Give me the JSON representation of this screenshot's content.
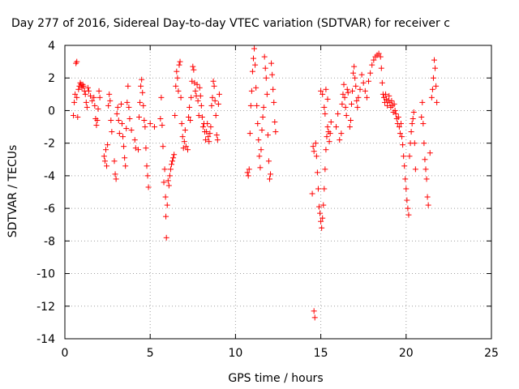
{
  "chart_data": {
    "type": "scatter",
    "title": "Day 277 of 2016, Sidereal Day-to-day VTEC variation (SDTVAR) for receiver c",
    "xlabel": "GPS time / hours",
    "ylabel": "SDTVAR / TECUs",
    "xlim": [
      0,
      25
    ],
    "ylim": [
      -14,
      4
    ],
    "xticks": [
      0,
      5,
      10,
      15,
      20,
      25
    ],
    "xtick_labels": [
      "0",
      "5",
      "10",
      "15",
      "20",
      "25"
    ],
    "yticks": [
      4,
      2,
      0,
      -2,
      -4,
      -6,
      -8,
      -10,
      -12,
      -14
    ],
    "ytick_labels": [
      "4",
      "2",
      "0",
      "-2",
      "-4",
      "-6",
      "-8",
      "-10",
      "-12",
      "-14"
    ],
    "grid": true,
    "marker": "+",
    "color": "#ff0000",
    "series": [
      {
        "name": "SDTVAR",
        "points": [
          [
            0.5,
            -0.3
          ],
          [
            0.55,
            0.5
          ],
          [
            0.6,
            1.0
          ],
          [
            0.65,
            2.9
          ],
          [
            0.7,
            3.0
          ],
          [
            0.7,
            0.8
          ],
          [
            0.75,
            -0.4
          ],
          [
            0.8,
            1.3
          ],
          [
            0.85,
            1.5
          ],
          [
            0.9,
            1.7
          ],
          [
            0.95,
            1.6
          ],
          [
            1.0,
            1.4
          ],
          [
            1.05,
            1.6
          ],
          [
            1.1,
            1.5
          ],
          [
            1.15,
            1.2
          ],
          [
            1.2,
            1.0
          ],
          [
            1.25,
            0.5
          ],
          [
            1.3,
            0.2
          ],
          [
            1.35,
            1.4
          ],
          [
            1.4,
            1.2
          ],
          [
            1.5,
            0.9
          ],
          [
            1.6,
            0.6
          ],
          [
            1.7,
            0.8
          ],
          [
            1.75,
            0.3
          ],
          [
            1.8,
            -0.5
          ],
          [
            1.85,
            -0.9
          ],
          [
            1.9,
            -0.6
          ],
          [
            1.95,
            0.1
          ],
          [
            2.0,
            1.2
          ],
          [
            2.05,
            0.8
          ],
          [
            2.3,
            -2.8
          ],
          [
            2.35,
            -3.1
          ],
          [
            2.4,
            -2.4
          ],
          [
            2.45,
            -3.4
          ],
          [
            2.5,
            -2.1
          ],
          [
            2.55,
            0.3
          ],
          [
            2.6,
            1.0
          ],
          [
            2.65,
            0.6
          ],
          [
            2.7,
            -0.6
          ],
          [
            2.75,
            -1.3
          ],
          [
            2.9,
            -3.1
          ],
          [
            2.95,
            -3.9
          ],
          [
            3.0,
            -4.2
          ],
          [
            3.05,
            -0.2
          ],
          [
            3.1,
            0.2
          ],
          [
            3.15,
            -0.6
          ],
          [
            3.2,
            -1.4
          ],
          [
            3.3,
            0.4
          ],
          [
            3.35,
            -0.8
          ],
          [
            3.4,
            -1.6
          ],
          [
            3.45,
            -2.2
          ],
          [
            3.5,
            -2.9
          ],
          [
            3.55,
            -3.4
          ],
          [
            3.6,
            -1.1
          ],
          [
            3.65,
            0.5
          ],
          [
            3.7,
            1.5
          ],
          [
            3.75,
            0.2
          ],
          [
            3.8,
            -0.5
          ],
          [
            3.9,
            -1.2
          ],
          [
            4.1,
            -1.8
          ],
          [
            4.15,
            -2.3
          ],
          [
            4.3,
            -2.4
          ],
          [
            4.35,
            -0.4
          ],
          [
            4.4,
            0.5
          ],
          [
            4.45,
            1.5
          ],
          [
            4.5,
            1.9
          ],
          [
            4.55,
            1.1
          ],
          [
            4.6,
            0.3
          ],
          [
            4.65,
            -0.6
          ],
          [
            4.7,
            -1.0
          ],
          [
            4.75,
            -2.3
          ],
          [
            4.8,
            -3.4
          ],
          [
            4.85,
            -4.0
          ],
          [
            4.9,
            -4.7
          ],
          [
            5.0,
            -0.8
          ],
          [
            5.25,
            -1.0
          ],
          [
            5.6,
            -0.5
          ],
          [
            5.65,
            0.8
          ],
          [
            5.7,
            -0.9
          ],
          [
            5.75,
            -2.2
          ],
          [
            5.8,
            -4.4
          ],
          [
            5.85,
            -3.6
          ],
          [
            5.9,
            -5.3
          ],
          [
            5.92,
            -6.5
          ],
          [
            5.95,
            -7.8
          ],
          [
            6.0,
            -5.8
          ],
          [
            6.05,
            -4.3
          ],
          [
            6.1,
            -4.6
          ],
          [
            6.15,
            -4.0
          ],
          [
            6.2,
            -3.6
          ],
          [
            6.25,
            -3.3
          ],
          [
            6.3,
            -3.1
          ],
          [
            6.35,
            -2.9
          ],
          [
            6.4,
            -2.7
          ],
          [
            6.45,
            -0.3
          ],
          [
            6.5,
            1.5
          ],
          [
            6.55,
            2.4
          ],
          [
            6.6,
            2.0
          ],
          [
            6.65,
            1.2
          ],
          [
            6.7,
            2.8
          ],
          [
            6.75,
            3.0
          ],
          [
            6.8,
            0.8
          ],
          [
            6.85,
            -0.8
          ],
          [
            6.9,
            -1.6
          ],
          [
            6.95,
            -2.3
          ],
          [
            7.0,
            -1.9
          ],
          [
            7.05,
            -1.2
          ],
          [
            7.1,
            -2.2
          ],
          [
            7.2,
            -2.4
          ],
          [
            7.25,
            -0.4
          ],
          [
            7.3,
            0.2
          ],
          [
            7.35,
            -0.6
          ],
          [
            7.4,
            0.8
          ],
          [
            7.45,
            1.8
          ],
          [
            7.5,
            2.7
          ],
          [
            7.55,
            2.5
          ],
          [
            7.6,
            1.7
          ],
          [
            7.65,
            1.2
          ],
          [
            7.7,
            0.9
          ],
          [
            7.75,
            1.6
          ],
          [
            7.8,
            0.6
          ],
          [
            7.85,
            -0.3
          ],
          [
            7.9,
            1.4
          ],
          [
            7.95,
            0.9
          ],
          [
            8.0,
            0.3
          ],
          [
            8.05,
            -0.4
          ],
          [
            8.1,
            -1.0
          ],
          [
            8.15,
            -0.8
          ],
          [
            8.2,
            -1.3
          ],
          [
            8.25,
            -1.8
          ],
          [
            8.3,
            -1.3
          ],
          [
            8.35,
            -0.8
          ],
          [
            8.4,
            -1.6
          ],
          [
            8.45,
            -1.9
          ],
          [
            8.5,
            -1.4
          ],
          [
            8.55,
            -1.0
          ],
          [
            8.6,
            0.3
          ],
          [
            8.65,
            0.8
          ],
          [
            8.7,
            1.8
          ],
          [
            8.75,
            1.5
          ],
          [
            8.8,
            0.6
          ],
          [
            8.85,
            -0.3
          ],
          [
            8.9,
            -1.5
          ],
          [
            8.95,
            -1.8
          ],
          [
            9.0,
            0.4
          ],
          [
            9.05,
            1.0
          ],
          [
            10.7,
            -3.8
          ],
          [
            10.75,
            -4.0
          ],
          [
            10.8,
            -3.6
          ],
          [
            10.85,
            -1.4
          ],
          [
            10.9,
            0.3
          ],
          [
            10.95,
            1.2
          ],
          [
            11.0,
            2.4
          ],
          [
            11.05,
            3.2
          ],
          [
            11.1,
            3.8
          ],
          [
            11.15,
            2.8
          ],
          [
            11.2,
            1.4
          ],
          [
            11.25,
            0.3
          ],
          [
            11.3,
            -0.8
          ],
          [
            11.35,
            -1.8
          ],
          [
            11.4,
            -2.8
          ],
          [
            11.45,
            -3.5
          ],
          [
            11.5,
            -2.4
          ],
          [
            11.55,
            -1.2
          ],
          [
            11.6,
            -0.4
          ],
          [
            11.65,
            0.2
          ],
          [
            11.7,
            3.3
          ],
          [
            11.75,
            2.6
          ],
          [
            11.8,
            2.0
          ],
          [
            11.85,
            1.0
          ],
          [
            11.9,
            -1.5
          ],
          [
            11.95,
            -3.1
          ],
          [
            12.0,
            -4.2
          ],
          [
            12.05,
            -3.9
          ],
          [
            12.1,
            2.9
          ],
          [
            12.15,
            2.2
          ],
          [
            12.2,
            1.3
          ],
          [
            12.25,
            0.5
          ],
          [
            12.3,
            -0.7
          ],
          [
            12.35,
            -1.3
          ],
          [
            14.5,
            -5.1
          ],
          [
            14.55,
            -2.2
          ],
          [
            14.6,
            -2.5
          ],
          [
            14.6,
            -12.3
          ],
          [
            14.65,
            -12.7
          ],
          [
            14.7,
            -2.0
          ],
          [
            14.75,
            -2.8
          ],
          [
            14.8,
            -3.8
          ],
          [
            14.85,
            -4.8
          ],
          [
            14.9,
            -5.9
          ],
          [
            14.95,
            -6.3
          ],
          [
            15.0,
            -6.8
          ],
          [
            15.05,
            -7.2
          ],
          [
            15.1,
            -6.6
          ],
          [
            15.15,
            -5.8
          ],
          [
            15.2,
            -4.8
          ],
          [
            15.25,
            -3.6
          ],
          [
            15.3,
            -2.4
          ],
          [
            15.35,
            -1.6
          ],
          [
            15.4,
            -1.0
          ],
          [
            15.45,
            -1.3
          ],
          [
            15.5,
            -1.9
          ],
          [
            15.55,
            -1.4
          ],
          [
            15.0,
            1.2
          ],
          [
            15.1,
            1.0
          ],
          [
            15.2,
            0.2
          ],
          [
            15.25,
            -0.2
          ],
          [
            15.3,
            1.3
          ],
          [
            15.4,
            0.7
          ],
          [
            15.6,
            -0.7
          ],
          [
            15.9,
            -1.0
          ],
          [
            16.0,
            -0.2
          ],
          [
            16.1,
            -1.8
          ],
          [
            16.2,
            -1.4
          ],
          [
            16.25,
            0.4
          ],
          [
            16.3,
            1.0
          ],
          [
            16.35,
            1.6
          ],
          [
            16.4,
            0.8
          ],
          [
            16.45,
            0.2
          ],
          [
            16.5,
            -0.3
          ],
          [
            16.55,
            1.3
          ],
          [
            16.6,
            1.1
          ],
          [
            16.7,
            -1.0
          ],
          [
            16.75,
            -0.6
          ],
          [
            16.8,
            0.4
          ],
          [
            16.85,
            1.2
          ],
          [
            16.9,
            2.3
          ],
          [
            16.95,
            2.7
          ],
          [
            17.0,
            2.0
          ],
          [
            17.05,
            1.5
          ],
          [
            17.1,
            0.6
          ],
          [
            17.15,
            0.2
          ],
          [
            17.2,
            0.8
          ],
          [
            17.3,
            1.3
          ],
          [
            17.4,
            2.2
          ],
          [
            17.5,
            1.7
          ],
          [
            17.6,
            1.2
          ],
          [
            17.7,
            0.8
          ],
          [
            17.8,
            1.8
          ],
          [
            17.9,
            2.3
          ],
          [
            18.0,
            2.8
          ],
          [
            18.1,
            3.1
          ],
          [
            18.2,
            3.3
          ],
          [
            18.3,
            3.4
          ],
          [
            18.4,
            3.5
          ],
          [
            18.5,
            3.3
          ],
          [
            18.55,
            2.6
          ],
          [
            18.6,
            1.7
          ],
          [
            18.65,
            1.0
          ],
          [
            18.7,
            0.8
          ],
          [
            18.75,
            0.5
          ],
          [
            18.8,
            1.0
          ],
          [
            18.85,
            0.7
          ],
          [
            18.9,
            0.3
          ],
          [
            18.95,
            0.6
          ],
          [
            19.0,
            0.9
          ],
          [
            19.05,
            0.5
          ],
          [
            19.1,
            0.2
          ],
          [
            19.15,
            0.6
          ],
          [
            19.2,
            0.3
          ],
          [
            19.25,
            -0.1
          ],
          [
            19.3,
            0.4
          ],
          [
            19.35,
            0.0
          ],
          [
            19.4,
            -0.2
          ],
          [
            19.45,
            -0.5
          ],
          [
            19.5,
            -0.8
          ],
          [
            19.55,
            -0.4
          ],
          [
            19.6,
            -1.0
          ],
          [
            19.65,
            -1.4
          ],
          [
            19.7,
            -0.8
          ],
          [
            19.75,
            -1.6
          ],
          [
            19.8,
            -2.1
          ],
          [
            19.85,
            -2.8
          ],
          [
            19.9,
            -3.4
          ],
          [
            19.95,
            -4.2
          ],
          [
            20.0,
            -4.8
          ],
          [
            20.05,
            -5.5
          ],
          [
            20.1,
            -6.0
          ],
          [
            20.15,
            -6.4
          ],
          [
            20.2,
            -2.8
          ],
          [
            20.25,
            -2.0
          ],
          [
            20.3,
            -1.3
          ],
          [
            20.35,
            -0.8
          ],
          [
            20.4,
            -0.5
          ],
          [
            20.45,
            -0.1
          ],
          [
            20.5,
            -2.0
          ],
          [
            20.55,
            -3.6
          ],
          [
            20.9,
            -0.4
          ],
          [
            20.95,
            0.5
          ],
          [
            21.0,
            -0.8
          ],
          [
            21.05,
            -2.0
          ],
          [
            21.1,
            -3.0
          ],
          [
            21.15,
            -3.6
          ],
          [
            21.2,
            -4.2
          ],
          [
            21.25,
            -5.3
          ],
          [
            21.3,
            -5.8
          ],
          [
            21.4,
            -2.6
          ],
          [
            21.5,
            0.8
          ],
          [
            21.55,
            1.3
          ],
          [
            21.6,
            2.0
          ],
          [
            21.65,
            3.1
          ],
          [
            21.7,
            2.6
          ],
          [
            21.75,
            1.5
          ],
          [
            21.8,
            0.5
          ]
        ]
      }
    ]
  }
}
